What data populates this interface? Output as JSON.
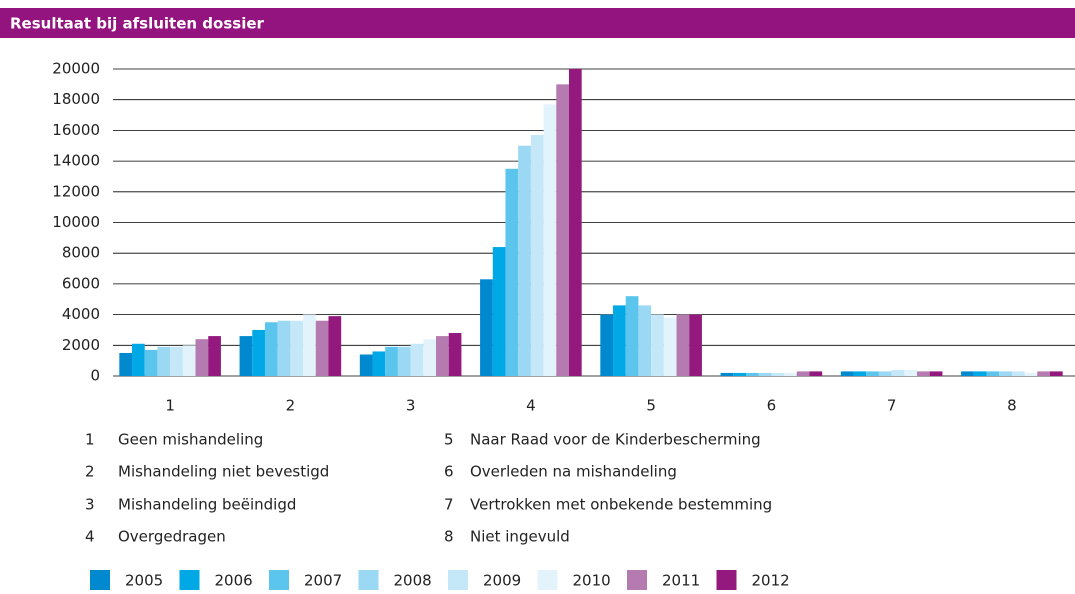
{
  "chart_data": {
    "type": "bar",
    "title": "Resultaat bij afsluiten dossier",
    "categories": [
      "1",
      "2",
      "3",
      "4",
      "5",
      "6",
      "7",
      "8"
    ],
    "category_labels": [
      "Geen mishandeling",
      "Mishandeling niet bevestigd",
      "Mishandeling beëindigd",
      "Overgedragen",
      "Naar Raad voor de Kinderbescherming",
      "Overleden na mishandeling",
      "Vertrokken met onbekende bestemming",
      "Niet ingevuld"
    ],
    "series": [
      {
        "name": "2005",
        "color": "#0089cf",
        "values": [
          1500,
          2600,
          1400,
          6300,
          4000,
          200,
          300,
          300
        ]
      },
      {
        "name": "2006",
        "color": "#00a8e6",
        "values": [
          2100,
          3000,
          1600,
          8400,
          4600,
          200,
          300,
          300
        ]
      },
      {
        "name": "2007",
        "color": "#5bc5ee",
        "values": [
          1700,
          3500,
          1900,
          13500,
          5200,
          200,
          300,
          300
        ]
      },
      {
        "name": "2008",
        "color": "#9bd8f3",
        "values": [
          1900,
          3600,
          1900,
          15000,
          4600,
          200,
          300,
          300
        ]
      },
      {
        "name": "2009",
        "color": "#c5e8f8",
        "values": [
          1900,
          3600,
          2100,
          15700,
          4000,
          200,
          400,
          300
        ]
      },
      {
        "name": "2010",
        "color": "#e3f3fb",
        "values": [
          2000,
          4000,
          2400,
          17700,
          3800,
          200,
          400,
          200
        ]
      },
      {
        "name": "2011",
        "color": "#b57bb0",
        "values": [
          2400,
          3600,
          2600,
          19000,
          4000,
          300,
          300,
          300
        ]
      },
      {
        "name": "2012",
        "color": "#94197f",
        "values": [
          2600,
          3900,
          2800,
          20000,
          4000,
          300,
          300,
          300
        ]
      }
    ],
    "ylim": [
      0,
      20000
    ],
    "yticks": [
      0,
      2000,
      4000,
      6000,
      8000,
      10000,
      12000,
      14000,
      16000,
      18000,
      20000
    ],
    "grid": true
  }
}
